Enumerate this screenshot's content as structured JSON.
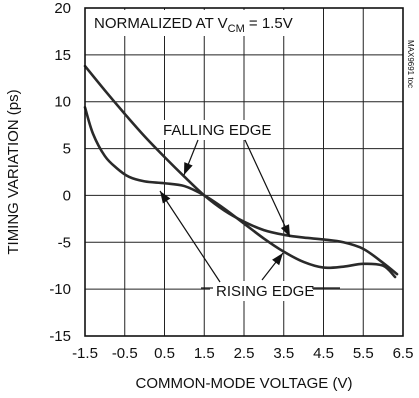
{
  "chart_data": {
    "type": "line",
    "title": "",
    "note_prefix": "NORMALIZED AT V",
    "note_subscript": "CM",
    "note_suffix": " = 1.5V",
    "xlabel": "COMMON-MODE VOLTAGE (V)",
    "ylabel": "TIMING VARIATION (ps)",
    "xlim": [
      -1.5,
      6.5
    ],
    "ylim": [
      -15,
      20
    ],
    "xticks": [
      -1.5,
      -0.5,
      0.5,
      1.5,
      2.5,
      3.5,
      4.5,
      5.5,
      6.5
    ],
    "xtick_labels": [
      "-1.5",
      "-0.5",
      "0.5",
      "1.5",
      "2.5",
      "3.5",
      "4.5",
      "5.5",
      "6.5"
    ],
    "yticks": [
      20,
      15,
      10,
      5,
      0,
      -5,
      -10,
      -15
    ],
    "ytick_labels": [
      "20",
      "15",
      "10",
      "5",
      "0",
      "-5",
      "-10",
      "-15"
    ],
    "grid": true,
    "series": [
      {
        "name": "FALLING EDGE",
        "x": [
          -1.5,
          -1.0,
          -0.5,
          0.0,
          0.5,
          1.0,
          1.5,
          2.0,
          2.5,
          3.0,
          3.5,
          4.0,
          4.5,
          5.0,
          5.5,
          6.0,
          6.35
        ],
        "y": [
          13.8,
          11.2,
          8.7,
          6.3,
          4.1,
          2.0,
          0.0,
          -1.6,
          -2.8,
          -3.7,
          -4.2,
          -4.5,
          -4.7,
          -5.0,
          -5.7,
          -7.2,
          -8.4
        ]
      },
      {
        "name": "RISING EDGE",
        "x": [
          -1.5,
          -1.3,
          -1.0,
          -0.7,
          -0.4,
          0.0,
          0.5,
          1.0,
          1.5,
          2.0,
          2.5,
          3.0,
          3.5,
          4.0,
          4.5,
          5.0,
          5.5,
          6.0,
          6.3
        ],
        "y": [
          9.4,
          6.6,
          4.2,
          2.9,
          2.0,
          1.5,
          1.3,
          1.0,
          0.0,
          -1.4,
          -3.0,
          -4.6,
          -6.0,
          -7.1,
          -7.7,
          -7.6,
          -7.3,
          -7.5,
          -8.7
        ]
      }
    ],
    "annotations": [
      {
        "text": "FALLING EDGE"
      },
      {
        "text": "RISING EDGE"
      }
    ],
    "side_code": "MAX9691 toc"
  }
}
